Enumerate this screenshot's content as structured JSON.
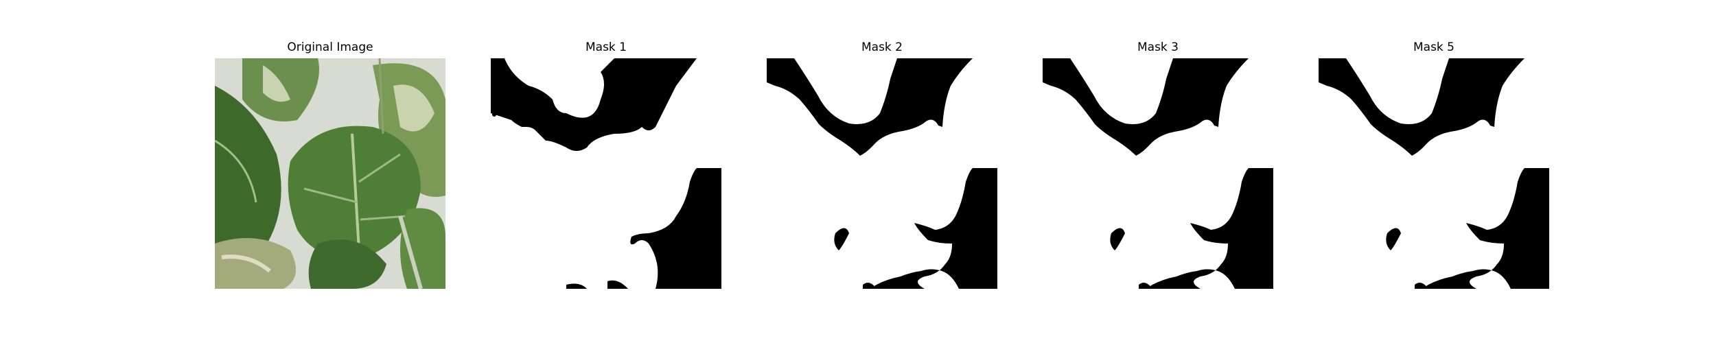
{
  "figure": {
    "panels": [
      {
        "title": "Original Image"
      },
      {
        "title": "Mask 1"
      },
      {
        "title": "Mask 2"
      },
      {
        "title": "Mask 3"
      },
      {
        "title": "Mask 5"
      }
    ]
  },
  "colors": {
    "background": "#ffffff",
    "mask_on": "#ffffff",
    "mask_off": "#000000",
    "leaf_dark": "#3f6b2c",
    "leaf_mid": "#5f8d3f",
    "leaf_light": "#a8c08a",
    "wall": "#d9dcd3"
  }
}
